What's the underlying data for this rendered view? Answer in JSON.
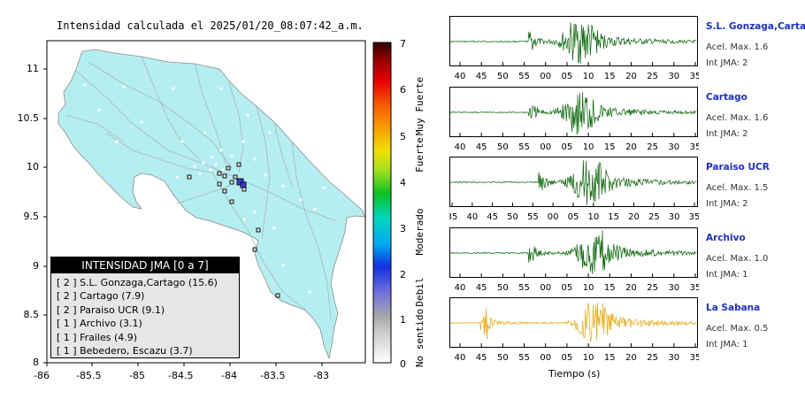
{
  "map": {
    "title": "Intensidad calculada el 2025/01/20_08:07:42_a.m.",
    "lon_ticks": [
      "-86",
      "-85.5",
      "-85",
      "-84.5",
      "-84",
      "-83.5",
      "-83"
    ],
    "lat_ticks": [
      "11",
      "10.5",
      "10",
      "9.5",
      "9",
      "8.5",
      "8"
    ],
    "land_color": "#b4eef0",
    "legend_title": "INTENSIDAD JMA [0 a 7]",
    "legend_items": [
      "[ 2 ]  S.L. Gonzaga,Cartago (15.6)",
      "[ 2 ]  Cartago (7.9)",
      "[ 2 ]  Paraiso UCR (9.1)",
      "[ 1 ]  Archivo (3.1)",
      "[ 1 ]  Frailes (4.9)",
      "[ 1 ]  Bebedero, Escazu (3.7)"
    ]
  },
  "colorbar": {
    "ticks": [
      "7",
      "6",
      "5",
      "4",
      "3",
      "2",
      "1",
      "0"
    ],
    "categories": [
      "Muy Fuerte",
      "Fuerte",
      "Moderado",
      "Debil",
      "No sentido"
    ]
  },
  "waveforms": {
    "x_label": "Tiempo (s)",
    "stations": [
      {
        "name": "S.L. Gonzaga,Cartago",
        "acel": "Acel. Max. 1.6",
        "int": "Int JMA: 2",
        "color": "#006400",
        "ticks": [
          "40",
          "45",
          "50",
          "55",
          "00",
          "05",
          "10",
          "15",
          "20",
          "25",
          "30",
          "35"
        ]
      },
      {
        "name": "Cartago",
        "acel": "Acel. Max. 1.6",
        "int": "Int JMA: 2",
        "color": "#006400",
        "ticks": [
          "40",
          "45",
          "50",
          "55",
          "00",
          "05",
          "10",
          "15",
          "20",
          "25",
          "30",
          "35"
        ]
      },
      {
        "name": "Paraiso UCR",
        "acel": "Acel. Max. 1.5",
        "int": "Int JMA: 2",
        "color": "#006400",
        "ticks": [
          "35",
          "40",
          "45",
          "50",
          "55",
          "00",
          "05",
          "10",
          "15",
          "20",
          "25",
          "30",
          "35"
        ]
      },
      {
        "name": "Archivo",
        "acel": "Acel. Max. 1.0",
        "int": "Int JMA: 1",
        "color": "#006400",
        "ticks": [
          "40",
          "45",
          "50",
          "55",
          "00",
          "05",
          "10",
          "15",
          "20",
          "25",
          "30",
          "35"
        ]
      },
      {
        "name": "La Sabana",
        "acel": "Acel. Max. 0.5",
        "int": "Int JMA: 1",
        "color": "#f0a500",
        "ticks": [
          "40",
          "45",
          "50",
          "55",
          "00",
          "05",
          "10",
          "15",
          "20",
          "25",
          "30",
          "35"
        ]
      }
    ]
  }
}
